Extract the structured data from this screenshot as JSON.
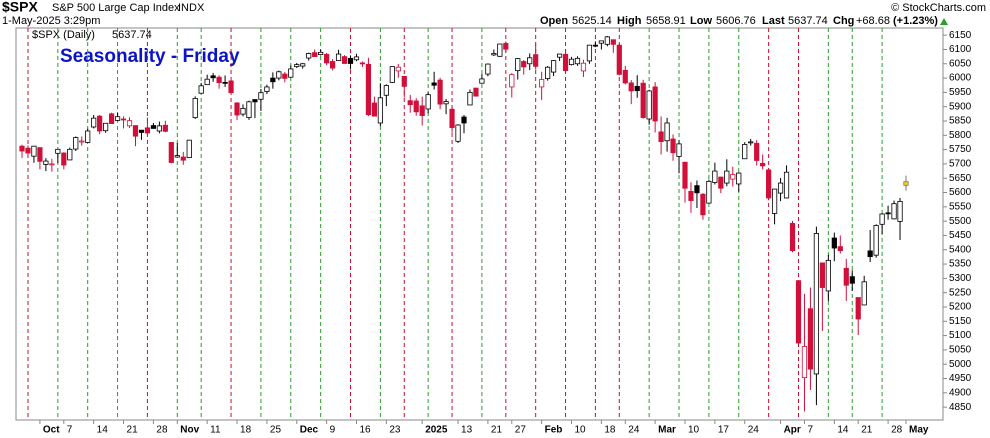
{
  "chart_data": {
    "type": "candlestick",
    "symbol": "$SPX",
    "name": "S&P 500 Large Cap Index",
    "exchange": "INDX",
    "timestamp": "1-May-2025 3:29pm",
    "copyright": "© StockCharts.com",
    "header_labels": [
      "Open",
      "High",
      "Low",
      "Last",
      "Chg"
    ],
    "change": "+68.68",
    "change_pct": "(+1.23%)",
    "legend": "$SPX (Daily)",
    "annotation": "Seasonality - Friday",
    "up_color": "#000000",
    "down_color": "#d0103a",
    "last_color": "#f2d21b",
    "friday_up_color": "#2a9d2a",
    "friday_down_color": "#c8102e",
    "ylim": [
      4805,
      6175
    ],
    "yticks": [
      4850,
      4900,
      4950,
      5000,
      5050,
      5100,
      5150,
      5200,
      5250,
      5300,
      5350,
      5400,
      5450,
      5500,
      5550,
      5600,
      5650,
      5700,
      5750,
      5800,
      5850,
      5900,
      5950,
      6000,
      6050,
      6100,
      6150
    ],
    "categories": [
      null,
      null,
      null,
      "Oct",
      null,
      null,
      null,
      "7",
      null,
      null,
      null,
      null,
      "14",
      null,
      null,
      null,
      null,
      "21",
      null,
      null,
      null,
      null,
      "28",
      null,
      null,
      null,
      "Nov",
      null,
      null,
      null,
      null,
      "11",
      null,
      null,
      null,
      null,
      "18",
      null,
      null,
      null,
      null,
      "25",
      null,
      null,
      null,
      null,
      "Dec",
      null,
      null,
      null,
      null,
      "9",
      null,
      null,
      null,
      null,
      "16",
      null,
      null,
      null,
      null,
      "23",
      null,
      null,
      null,
      null,
      null,
      "2025",
      null,
      null,
      null,
      null,
      null,
      "13",
      null,
      null,
      null,
      null,
      "21",
      null,
      null,
      null,
      "27",
      null,
      null,
      null,
      null,
      "Feb",
      null,
      null,
      null,
      null,
      "10",
      null,
      null,
      null,
      null,
      "18",
      null,
      null,
      null,
      "24",
      null,
      null,
      null,
      null,
      "Mar",
      null,
      null,
      null,
      null,
      "10",
      null,
      null,
      null,
      null,
      "17",
      null,
      null,
      null,
      null,
      "24",
      null,
      null,
      null,
      null,
      null,
      "Apr",
      null,
      null,
      null,
      "7",
      null,
      null,
      null,
      null,
      "14",
      null,
      null,
      null,
      "21",
      null,
      null,
      null,
      null,
      "28",
      null,
      null,
      "May"
    ],
    "fridays": [
      1,
      6,
      11,
      16,
      21,
      26,
      30,
      35,
      40,
      45,
      50,
      55,
      60,
      64,
      68,
      72,
      77,
      81,
      86,
      91,
      96,
      100,
      105,
      110,
      115,
      120,
      125,
      130,
      135,
      139,
      144
    ],
    "open": [
      5762,
      5755,
      5727,
      5757,
      5698,
      5698,
      5737,
      5738,
      5714,
      5752,
      5778,
      5775,
      5829,
      5867,
      5816,
      5875,
      5852,
      5857,
      5833,
      5834,
      5818,
      5826,
      5834,
      5815,
      5835,
      5775,
      5724,
      5724,
      5722,
      5862,
      5947,
      5977,
      6008,
      6003,
      5985,
      5990,
      5913,
      5874,
      5862,
      5925,
      5926,
      5953,
      6000,
      6000,
      6014,
      6003,
      6040,
      6042,
      6070,
      6089,
      6082,
      6083,
      6058,
      6061,
      6075,
      6069,
      6064,
      6053,
      6048,
      5913,
      5843,
      5940,
      5985,
      6025,
      6006,
      5921,
      5920,
      5903,
      5892,
      5983,
      5993,
      5910,
      5891,
      5779,
      5864,
      5906,
      5965,
      5982,
      6014,
      6081,
      6076,
      6121,
      5969,
      6026,
      6058,
      6050,
      6082,
      5969,
      5998,
      6021,
      6073,
      6083,
      6047,
      6050,
      6025,
      6060,
      6115,
      6122,
      6118,
      6134,
      6115,
      6027,
      5983,
      5971,
      5982,
      5857,
      5969,
      5812,
      5781,
      5787,
      5726,
      5706,
      5604,
      5624,
      5594,
      5563,
      5635,
      5654,
      5633,
      5647,
      5630,
      5718,
      5776,
      5772,
      5702,
      5679,
      5527,
      5598,
      5581,
      5492,
      5292,
      4953,
      5194,
      4966,
      5354,
      5256,
      5441,
      5411,
      5335,
      5306,
      5233,
      5207,
      5396,
      5381,
      5489,
      5529,
      5508,
      5499,
      5625.14
    ],
    "high": [
      5767,
      5765,
      5763,
      5757,
      5720,
      5718,
      5753,
      5741,
      5757,
      5796,
      5796,
      5823,
      5871,
      5871,
      5843,
      5879,
      5878,
      5866,
      5863,
      5834,
      5818,
      5862,
      5843,
      5848,
      5851,
      5775,
      5773,
      5742,
      5784,
      5936,
      5983,
      6012,
      6018,
      6010,
      6009,
      5993,
      5916,
      5908,
      5921,
      5925,
      5962,
      5977,
      6020,
      6026,
      6021,
      6044,
      6053,
      6053,
      6089,
      6100,
      6100,
      6088,
      6066,
      6099,
      6080,
      6079,
      6085,
      6058,
      6071,
      5935,
      5982,
      5978,
      6041,
      6049,
      6007,
      5941,
      5930,
      5935,
      5950,
      6022,
      6001,
      5927,
      5904,
      5839,
      5871,
      5960,
      5965,
      6014,
      6051,
      6100,
      6119,
      6128,
      6017,
      6070,
      6063,
      6086,
      6120,
      6022,
      6042,
      6063,
      6084,
      6101,
      6074,
      6076,
      6064,
      6116,
      6128,
      6130,
      6147,
      6135,
      6120,
      6043,
      5993,
      6010,
      5994,
      5959,
      5986,
      5866,
      5861,
      5803,
      5784,
      5706,
      5636,
      5642,
      5598,
      5645,
      5704,
      5655,
      5716,
      5690,
      5671,
      5776,
      5787,
      5783,
      5733,
      5685,
      5613,
      5651,
      5695,
      5501,
      5293,
      5246,
      5268,
      5481,
      5354,
      5382,
      5460,
      5450,
      5368,
      5328,
      5233,
      5309,
      5469,
      5489,
      5528,
      5554,
      5572,
      5581,
      5658.91
    ],
    "low": [
      5721,
      5727,
      5704,
      5681,
      5675,
      5673,
      5703,
      5681,
      5713,
      5745,
      5764,
      5773,
      5824,
      5804,
      5809,
      5840,
      5850,
      5824,
      5826,
      5762,
      5784,
      5800,
      5823,
      5807,
      5811,
      5702,
      5724,
      5697,
      5722,
      5857,
      5947,
      5976,
      5987,
      5963,
      5969,
      5946,
      5853,
      5866,
      5854,
      5860,
      5885,
      5944,
      5963,
      5992,
      5985,
      6003,
      6035,
      6033,
      6061,
      6075,
      6079,
      6045,
      6027,
      6060,
      6051,
      6030,
      6059,
      6039,
      5867,
      5866,
      5832,
      5902,
      5983,
      6001,
      5932,
      5879,
      5869,
      5834,
      5877,
      5960,
      5891,
      5874,
      5809,
      5773,
      5807,
      5906,
      5935,
      5982,
      6006,
      6077,
      6074,
      6089,
      5932,
      5995,
      6012,
      6028,
      6030,
      5923,
      5991,
      6007,
      6060,
      6020,
      6044,
      6043,
      6004,
      6050,
      6108,
      6100,
      6111,
      6088,
      6009,
      5978,
      5909,
      5931,
      5858,
      5837,
      5810,
      5733,
      5743,
      5711,
      5667,
      5565,
      5529,
      5546,
      5505,
      5563,
      5628,
      5598,
      5622,
      5621,
      5603,
      5718,
      5764,
      5695,
      5681,
      5573,
      5489,
      5570,
      5579,
      5391,
      5070,
      4835,
      4910,
      4857,
      5116,
      5221,
      5360,
      5387,
      5221,
      5256,
      5102,
      5207,
      5357,
      5372,
      5455,
      5505,
      5506,
      5434,
      5606.76
    ],
    "close": [
      5745,
      5738,
      5762,
      5709,
      5710,
      5700,
      5751,
      5696,
      5751,
      5792,
      5780,
      5815,
      5860,
      5815,
      5842,
      5841,
      5865,
      5854,
      5851,
      5797,
      5810,
      5808,
      5824,
      5833,
      5814,
      5705,
      5729,
      5713,
      5783,
      5929,
      5973,
      5996,
      6001,
      5984,
      5985,
      5949,
      5871,
      5894,
      5917,
      5917,
      5949,
      5969,
      5987,
      6022,
      5999,
      6032,
      6047,
      6050,
      6086,
      6075,
      6090,
      6053,
      6035,
      6084,
      6051,
      6051,
      6074,
      6051,
      5872,
      5867,
      5931,
      5974,
      6040,
      6038,
      5971,
      5907,
      5882,
      5869,
      5942,
      5975,
      5909,
      5918,
      5827,
      5836,
      5843,
      5950,
      5937,
      5997,
      6049,
      6086,
      6119,
      6101,
      6012,
      6068,
      6039,
      6071,
      6041,
      5995,
      6038,
      6061,
      6084,
      6026,
      6066,
      6069,
      6052,
      6115,
      6115,
      6130,
      6144,
      6118,
      6013,
      5983,
      5955,
      5956,
      5862,
      5955,
      5850,
      5778,
      5843,
      5739,
      5770,
      5615,
      5572,
      5599,
      5522,
      5639,
      5675,
      5615,
      5675,
      5663,
      5668,
      5768,
      5777,
      5712,
      5693,
      5581,
      5612,
      5633,
      5671,
      5397,
      5074,
      5062,
      4983,
      5457,
      5268,
      5363,
      5406,
      5397,
      5276,
      5283,
      5158,
      5288,
      5376,
      5485,
      5525,
      5529,
      5561,
      5569,
      5637.74
    ]
  }
}
